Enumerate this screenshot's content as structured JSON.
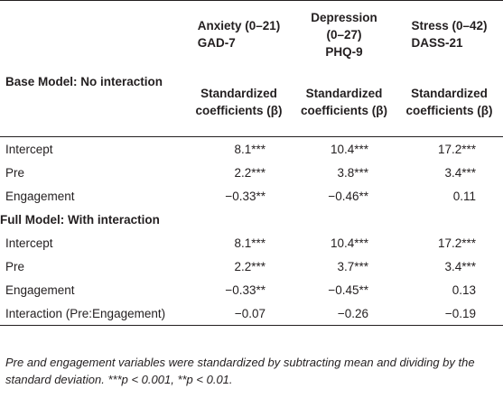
{
  "columns": [
    {
      "line1": "Anxiety (0–21)",
      "line2": "GAD-7",
      "line3": ""
    },
    {
      "line1": "Depression",
      "line2": "(0–27)",
      "line3": "PHQ-9"
    },
    {
      "line1": "Stress (0–42)",
      "line2": "DASS-21",
      "line3": ""
    }
  ],
  "base_model": {
    "title": "Base Model: No interaction",
    "coef_header": [
      "Standardized coefficients (β)",
      "Standardized coefficients (β)",
      "Standardized coefficients (β)"
    ],
    "rows": [
      {
        "label": "Intercept",
        "values": [
          "8.1***",
          "10.4***",
          "17.2***"
        ]
      },
      {
        "label": "Pre",
        "values": [
          "2.2***",
          "3.8***",
          "3.4***"
        ]
      },
      {
        "label": "Engagement",
        "values": [
          "−0.33**",
          "−0.46**",
          "0.11"
        ]
      }
    ]
  },
  "full_model": {
    "title": "Full Model: With interaction",
    "rows": [
      {
        "label": "Intercept",
        "values": [
          "8.1***",
          "10.4***",
          "17.2***"
        ]
      },
      {
        "label": "Pre",
        "values": [
          "2.2***",
          "3.7***",
          "3.4***"
        ]
      },
      {
        "label": "Engagement",
        "values": [
          "−0.33**",
          "−0.45**",
          "0.13"
        ]
      },
      {
        "label": "Interaction (Pre:Engagement)",
        "values": [
          "−0.07",
          "−0.26",
          "−0.19"
        ]
      }
    ]
  },
  "footnote": "Pre and engagement variables were standardized by subtracting mean and dividing by the standard deviation. ***p < 0.001, **p < 0.01."
}
